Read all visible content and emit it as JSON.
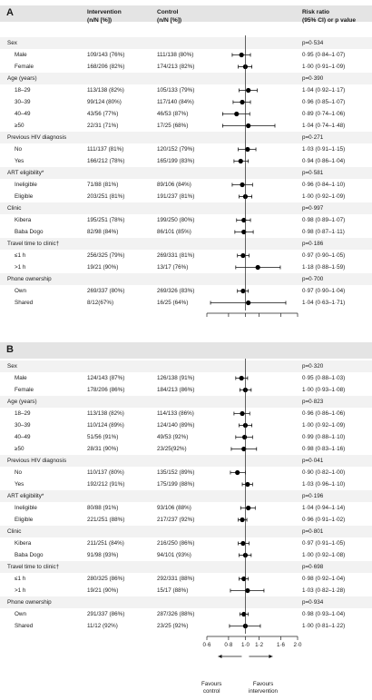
{
  "columns": {
    "intervention": [
      "Intervention",
      "(n/N [%])"
    ],
    "control": [
      "Control",
      "(n/N [%])"
    ],
    "risk": [
      "Risk ratio",
      "(95% CI) or p value"
    ]
  },
  "panels": [
    {
      "label": "A",
      "rows": [
        {
          "label": "Sex",
          "type": "group",
          "rr": "p=0·534"
        },
        {
          "label": "Male",
          "type": "sub",
          "int": "109/143 (76%)",
          "ctl": "111/138 (80%)",
          "rr": "0·95 (0·84–1·07)",
          "est": 0.95,
          "lo": 0.84,
          "hi": 1.07
        },
        {
          "label": "Female",
          "type": "sub",
          "int": "168/206 (82%)",
          "ctl": "174/213 (82%)",
          "rr": "1·00 (0·91–1·09)",
          "est": 1.0,
          "lo": 0.91,
          "hi": 1.09
        },
        {
          "label": "Age (years)",
          "type": "group",
          "rr": "p=0·390"
        },
        {
          "label": "18–29",
          "type": "sub",
          "int": "113/138 (82%)",
          "ctl": "105/133 (79%)",
          "rr": "1·04 (0·92–1·17)",
          "est": 1.04,
          "lo": 0.92,
          "hi": 1.17
        },
        {
          "label": "30–39",
          "type": "sub",
          "int": "99/124 (80%)",
          "ctl": "117/140 (84%)",
          "rr": "0·96 (0·85–1·07)",
          "est": 0.96,
          "lo": 0.85,
          "hi": 1.07
        },
        {
          "label": "40–49",
          "type": "sub",
          "int": "43/56 (77%)",
          "ctl": "46/53 (87%)",
          "rr": "0·89 (0·74–1·06)",
          "est": 0.89,
          "lo": 0.74,
          "hi": 1.06
        },
        {
          "label": "≥50",
          "type": "sub",
          "int": "22/31 (71%)",
          "ctl": "17/25 (68%)",
          "rr": "1·04 (0·74–1·48)",
          "est": 1.04,
          "lo": 0.74,
          "hi": 1.48
        },
        {
          "label": "Previous HIV diagnosis",
          "type": "group",
          "rr": "p=0·271"
        },
        {
          "label": "No",
          "type": "sub",
          "int": "111/137 (81%)",
          "ctl": "120/152 (79%)",
          "rr": "1·03 (0·91–1·15)",
          "est": 1.03,
          "lo": 0.91,
          "hi": 1.15
        },
        {
          "label": "Yes",
          "type": "sub",
          "int": "166/212 (78%)",
          "ctl": "165/199 (83%)",
          "rr": "0·94 (0·86–1·04)",
          "est": 0.94,
          "lo": 0.86,
          "hi": 1.04
        },
        {
          "label": "ART eligibility*",
          "type": "group",
          "rr": "p=0·581"
        },
        {
          "label": "Ineligible",
          "type": "sub",
          "int": "71/88 (81%)",
          "ctl": "89/106 (84%)",
          "rr": "0·96 (0·84–1·10)",
          "est": 0.96,
          "lo": 0.84,
          "hi": 1.1
        },
        {
          "label": "Eligible",
          "type": "sub",
          "int": "203/251 (81%)",
          "ctl": "191/237 (81%)",
          "rr": "1·00 (0·92–1·09)",
          "est": 1.0,
          "lo": 0.92,
          "hi": 1.09
        },
        {
          "label": "Clinic",
          "type": "group",
          "rr": "p=0·997"
        },
        {
          "label": "Kibera",
          "type": "sub",
          "int": "195/251 (78%)",
          "ctl": "199/250 (80%)",
          "rr": "0·98 (0·89–1·07)",
          "est": 0.98,
          "lo": 0.89,
          "hi": 1.07
        },
        {
          "label": "Baba Dogo",
          "type": "sub",
          "int": "82/98 (84%)",
          "ctl": "86/101 (85%)",
          "rr": "0·98 (0·87–1·11)",
          "est": 0.98,
          "lo": 0.87,
          "hi": 1.11
        },
        {
          "label": "Travel time to clinic†",
          "type": "group",
          "rr": "p=0·186"
        },
        {
          "label": "≤1 h",
          "type": "sub",
          "int": "256/325 (79%)",
          "ctl": "269/331 (81%)",
          "rr": "0·97 (0·90–1·05)",
          "est": 0.97,
          "lo": 0.9,
          "hi": 1.05
        },
        {
          "label": ">1 h",
          "type": "sub",
          "int": "19/21 (90%)",
          "ctl": "13/17 (76%)",
          "rr": "1·18 (0·88–1·59)",
          "est": 1.18,
          "lo": 0.88,
          "hi": 1.59
        },
        {
          "label": "Phone ownership",
          "type": "group",
          "rr": "p=0·700"
        },
        {
          "label": "Own",
          "type": "sub",
          "int": "269/337 (80%)",
          "ctl": "269/326 (83%)",
          "rr": "0·97 (0·90–1·04)",
          "est": 0.97,
          "lo": 0.9,
          "hi": 1.04
        },
        {
          "label": "Shared",
          "type": "sub",
          "int": "8/12(67%)",
          "ctl": "16/25 (64%)",
          "rr": "1·04 (0·63–1·71)",
          "est": 1.04,
          "lo": 0.63,
          "hi": 1.71
        }
      ]
    },
    {
      "label": "B",
      "rows": [
        {
          "label": "Sex",
          "type": "group",
          "rr": "p=0·320"
        },
        {
          "label": "Male",
          "type": "sub",
          "int": "124/143 (87%)",
          "ctl": "126/138 (91%)",
          "rr": "0·95 (0·88–1·03)",
          "est": 0.95,
          "lo": 0.88,
          "hi": 1.03
        },
        {
          "label": "Female",
          "type": "sub",
          "int": "178/206 (86%)",
          "ctl": "184/213 (86%)",
          "rr": "1·00 (0·93–1·08)",
          "est": 1.0,
          "lo": 0.93,
          "hi": 1.08
        },
        {
          "label": "Age (years)",
          "type": "group",
          "rr": "p=0·823"
        },
        {
          "label": "18–29",
          "type": "sub",
          "int": "113/138 (82%)",
          "ctl": "114/133 (86%)",
          "rr": "0·96 (0·86–1·06)",
          "est": 0.96,
          "lo": 0.86,
          "hi": 1.06
        },
        {
          "label": "30–39",
          "type": "sub",
          "int": "110/124 (89%)",
          "ctl": "124/140 (89%)",
          "rr": "1·00 (0·92–1·09)",
          "est": 1.0,
          "lo": 0.92,
          "hi": 1.09
        },
        {
          "label": "40–49",
          "type": "sub",
          "int": "51/56 (91%)",
          "ctl": "49/53 (92%)",
          "rr": "0·99 (0·88–1·10)",
          "est": 0.99,
          "lo": 0.88,
          "hi": 1.1
        },
        {
          "label": "≥50",
          "type": "sub",
          "int": "28/31 (90%)",
          "ctl": "23/25(92%)",
          "rr": "0·98 (0·83–1·16)",
          "est": 0.98,
          "lo": 0.83,
          "hi": 1.16
        },
        {
          "label": "Previous HIV diagnosis",
          "type": "group",
          "rr": "p=0·041"
        },
        {
          "label": "No",
          "type": "sub",
          "int": "110/137 (80%)",
          "ctl": "135/152 (89%)",
          "rr": "0·90 (0·82–1·00)",
          "est": 0.9,
          "lo": 0.82,
          "hi": 1.0
        },
        {
          "label": "Yes",
          "type": "sub",
          "int": "192/212 (91%)",
          "ctl": "175/199 (88%)",
          "rr": "1·03 (0·96–1·10)",
          "est": 1.03,
          "lo": 0.96,
          "hi": 1.1
        },
        {
          "label": "ART eligibility*",
          "type": "group",
          "rr": "p=0·196"
        },
        {
          "label": "Ineligible",
          "type": "sub",
          "int": "80/88 (91%)",
          "ctl": "93/106 (88%)",
          "rr": "1·04 (0·94–1·14)",
          "est": 1.04,
          "lo": 0.94,
          "hi": 1.14
        },
        {
          "label": "Eligible",
          "type": "sub",
          "int": "221/251 (88%)",
          "ctl": "217/237 (92%)",
          "rr": "0·96 (0·91–1·02)",
          "est": 0.96,
          "lo": 0.91,
          "hi": 1.02
        },
        {
          "label": "Clinic",
          "type": "group",
          "rr": "p=0·801"
        },
        {
          "label": "Kibera",
          "type": "sub",
          "int": "211/251 (84%)",
          "ctl": "216/250 (86%)",
          "rr": "0·97 (0·91–1·05)",
          "est": 0.97,
          "lo": 0.91,
          "hi": 1.05
        },
        {
          "label": "Baba Dogo",
          "type": "sub",
          "int": "91/98 (93%)",
          "ctl": "94/101 (93%)",
          "rr": "1·00 (0·92–1·08)",
          "est": 1.0,
          "lo": 0.92,
          "hi": 1.08
        },
        {
          "label": "Travel time to clinic†",
          "type": "group",
          "rr": "p=0·698"
        },
        {
          "label": "≤1 h",
          "type": "sub",
          "int": "280/325 (86%)",
          "ctl": "292/331 (88%)",
          "rr": "0·98 (0·92–1·04)",
          "est": 0.98,
          "lo": 0.92,
          "hi": 1.04
        },
        {
          "label": ">1 h",
          "type": "sub",
          "int": "19/21 (90%)",
          "ctl": "15/17 (88%)",
          "rr": "1·03 (0·82–1·28)",
          "est": 1.03,
          "lo": 0.82,
          "hi": 1.28
        },
        {
          "label": "Phone ownership",
          "type": "group",
          "rr": "p=0·934"
        },
        {
          "label": "Own",
          "type": "sub",
          "int": "291/337 (86%)",
          "ctl": "287/326 (88%)",
          "rr": "0·98 (0·93–1·04)",
          "est": 0.98,
          "lo": 0.93,
          "hi": 1.04
        },
        {
          "label": "Shared",
          "type": "sub",
          "int": "11/12 (92%)",
          "ctl": "23/25 (92%)",
          "rr": "1·00 (0·81–1·22)",
          "est": 1.0,
          "lo": 0.81,
          "hi": 1.22
        }
      ]
    }
  ],
  "axis": {
    "ticks": [
      "0·6",
      "0·8",
      "1·0",
      "1·2",
      "1·6",
      "2·0"
    ],
    "tick_values": [
      0.6,
      0.8,
      1.0,
      1.2,
      1.6,
      2.0
    ],
    "scale": "log",
    "left_note": [
      "Favours",
      "control"
    ],
    "right_note": [
      "Favours",
      "intervention"
    ]
  },
  "chart_data": {
    "type": "forest",
    "xscale": "log",
    "xlim": [
      0.6,
      2.0
    ],
    "reference_line": 1.0
  }
}
